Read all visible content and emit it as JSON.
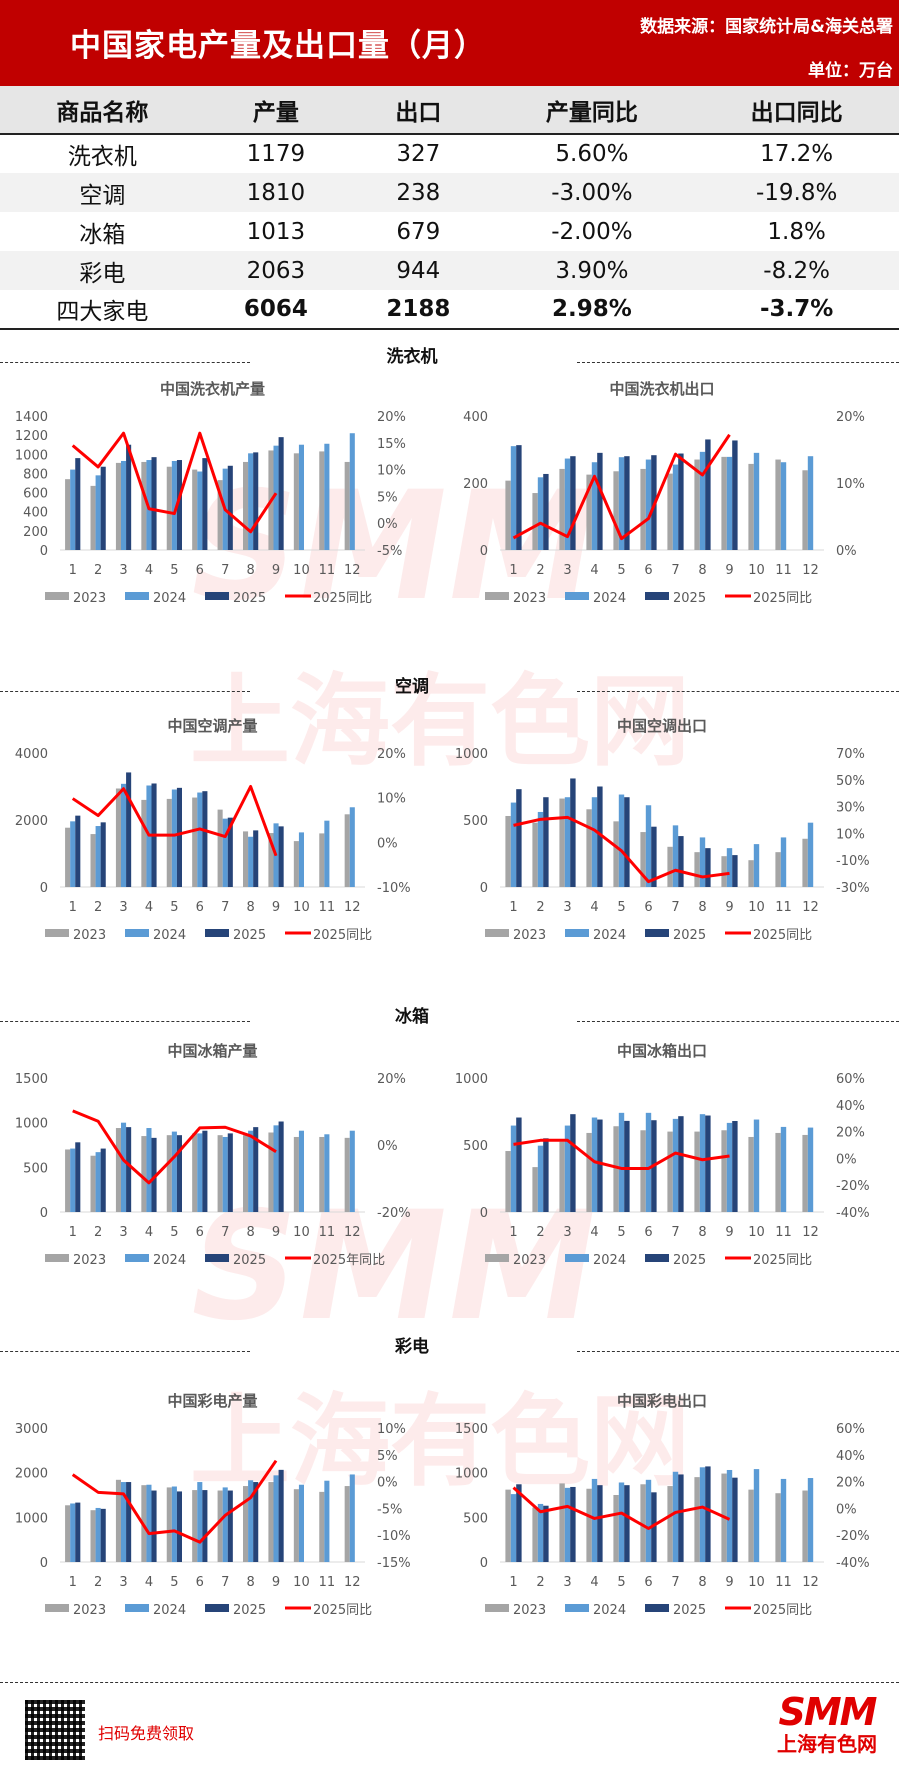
{
  "header": {
    "title": "中国家电产量及出口量（月）",
    "source": "数据来源：国家统计局&海关总署",
    "unit": "单位：万台"
  },
  "summary_table": {
    "columns": [
      "商品名称",
      "产量",
      "出口",
      "产量同比",
      "出口同比"
    ],
    "rows": [
      [
        "洗衣机",
        "1179",
        "327",
        "5.60%",
        "17.2%"
      ],
      [
        "空调",
        "1810",
        "238",
        "-3.00%",
        "-19.8%"
      ],
      [
        "冰箱",
        "1013",
        "679",
        "-2.00%",
        "1.8%"
      ],
      [
        "彩电",
        "2063",
        "944",
        "3.90%",
        "-8.2%"
      ],
      [
        "四大家电",
        "6064",
        "2188",
        "2.98%",
        "-3.7%"
      ]
    ]
  },
  "sections": [
    "洗衣机",
    "空调",
    "冰箱",
    "彩电"
  ],
  "colors": {
    "y2023": "#a5a5a5",
    "y2024": "#5b9bd5",
    "y2025_wm": "#002060",
    "y2025": "#264478",
    "yoy": "#ff0000",
    "brand": "#c00000"
  },
  "chart_data": [
    {
      "type": "bar+line",
      "title": "中国洗衣机产量",
      "categories": [
        "1",
        "2",
        "3",
        "4",
        "5",
        "6",
        "7",
        "8",
        "9",
        "10",
        "11",
        "12"
      ],
      "series": [
        {
          "name": "2023",
          "values": [
            740,
            670,
            910,
            920,
            870,
            840,
            730,
            920,
            1040,
            1010,
            1030,
            920
          ]
        },
        {
          "name": "2024",
          "values": [
            840,
            780,
            930,
            940,
            930,
            820,
            850,
            1010,
            1090,
            1100,
            1110,
            1220
          ]
        },
        {
          "name": "2025",
          "values": [
            960,
            870,
            1100,
            970,
            940,
            960,
            880,
            1020,
            1179,
            null,
            null,
            null
          ]
        }
      ],
      "line": {
        "name": "2025同比",
        "values": [
          14.5,
          10.5,
          16.8,
          2.7,
          1.8,
          16.8,
          2.5,
          -1.6,
          5.6
        ]
      },
      "ylim": [
        0,
        1400
      ],
      "yticks": [
        0,
        200,
        400,
        600,
        800,
        1000,
        1200,
        1400
      ],
      "y2lim": [
        -5,
        20
      ],
      "y2ticks": [
        "-5%",
        "0%",
        "5%",
        "10%",
        "15%",
        "20%"
      ],
      "legend": [
        "2023",
        "2024",
        "2025",
        "2025同比"
      ]
    },
    {
      "type": "bar+line",
      "title": "中国洗衣机出口",
      "categories": [
        "1",
        "2",
        "3",
        "4",
        "5",
        "6",
        "7",
        "8",
        "9",
        "10",
        "11",
        "12"
      ],
      "series": [
        {
          "name": "2023",
          "values": [
            207,
            170,
            242,
            225,
            235,
            242,
            228,
            270,
            278,
            257,
            270,
            238
          ]
        },
        {
          "name": "2024",
          "values": [
            310,
            217,
            273,
            262,
            277,
            270,
            255,
            293,
            278,
            290,
            262,
            280
          ]
        },
        {
          "name": "2025",
          "values": [
            313,
            227,
            280,
            290,
            280,
            283,
            288,
            330,
            327,
            null,
            null,
            null
          ]
        }
      ],
      "line": {
        "name": "2025同比",
        "values": [
          1.8,
          4.0,
          2.0,
          11.0,
          1.7,
          4.7,
          14.3,
          11.2,
          17.2
        ]
      },
      "ylim": [
        0,
        400
      ],
      "yticks": [
        0,
        200,
        400
      ],
      "y2lim": [
        0,
        20
      ],
      "y2ticks": [
        "0%",
        "10%",
        "20%"
      ],
      "legend": [
        "2023",
        "2024",
        "2025",
        "2025同比"
      ]
    },
    {
      "type": "bar+line",
      "title": "中国空调产量",
      "categories": [
        "1",
        "2",
        "3",
        "4",
        "5",
        "6",
        "7",
        "8",
        "9",
        "10",
        "11",
        "12"
      ],
      "series": [
        {
          "name": "2023",
          "values": [
            1770,
            1580,
            2940,
            2600,
            2630,
            2670,
            2310,
            1660,
            1610,
            1370,
            1600,
            2170
          ]
        },
        {
          "name": "2024",
          "values": [
            1960,
            1820,
            3080,
            3030,
            2910,
            2820,
            2040,
            1500,
            1900,
            1630,
            1980,
            2380
          ]
        },
        {
          "name": "2025",
          "values": [
            2130,
            1930,
            3420,
            3090,
            2960,
            2860,
            2070,
            1690,
            1810,
            null,
            null,
            null
          ]
        }
      ],
      "line": {
        "name": "2025同比",
        "values": [
          9.8,
          6.0,
          12.0,
          1.6,
          1.6,
          3.0,
          1.3,
          12.5,
          -3.0
        ]
      },
      "ylim": [
        0,
        4000
      ],
      "yticks": [
        0,
        2000,
        4000
      ],
      "y2lim": [
        -10,
        20
      ],
      "y2ticks": [
        "-10%",
        "0%",
        "10%",
        "20%"
      ],
      "legend": [
        "2023",
        "2024",
        "2025",
        "2025同比"
      ]
    },
    {
      "type": "bar+line",
      "title": "中国空调出口",
      "categories": [
        "1",
        "2",
        "3",
        "4",
        "5",
        "6",
        "7",
        "8",
        "9",
        "10",
        "11",
        "12"
      ],
      "series": [
        {
          "name": "2023",
          "values": [
            530,
            480,
            660,
            580,
            490,
            410,
            300,
            260,
            230,
            200,
            260,
            360
          ]
        },
        {
          "name": "2024",
          "values": [
            630,
            560,
            670,
            670,
            690,
            610,
            460,
            370,
            290,
            320,
            370,
            480
          ]
        },
        {
          "name": "2025",
          "values": [
            730,
            670,
            810,
            750,
            670,
            450,
            380,
            290,
            238,
            null,
            null,
            null
          ]
        }
      ],
      "line": {
        "name": "2025同比",
        "values": [
          16,
          20.5,
          22,
          12.5,
          -3,
          -26,
          -17.5,
          -22.5,
          -19.8
        ]
      },
      "ylim": [
        0,
        1000
      ],
      "yticks": [
        0,
        500,
        1000
      ],
      "y2lim": [
        -30,
        70
      ],
      "y2ticks": [
        "-30%",
        "-10%",
        "10%",
        "30%",
        "50%",
        "70%"
      ],
      "legend": [
        "2023",
        "2024",
        "2025",
        "2025同比"
      ]
    },
    {
      "type": "bar+line",
      "title": "中国冰箱产量",
      "categories": [
        "1",
        "2",
        "3",
        "4",
        "5",
        "6",
        "7",
        "8",
        "9",
        "10",
        "11",
        "12"
      ],
      "series": [
        {
          "name": "2023",
          "values": [
            700,
            630,
            940,
            850,
            860,
            880,
            860,
            860,
            890,
            840,
            840,
            830
          ]
        },
        {
          "name": "2024",
          "values": [
            710,
            670,
            1000,
            940,
            900,
            880,
            840,
            910,
            970,
            910,
            870,
            910
          ]
        },
        {
          "name": "2025",
          "values": [
            780,
            710,
            950,
            830,
            860,
            910,
            880,
            950,
            1013,
            null,
            null,
            null
          ]
        }
      ],
      "line": {
        "name": "2025年同比",
        "values": [
          10.2,
          7.1,
          -4.5,
          -11.3,
          -3.5,
          5.1,
          5.3,
          2.7,
          -2.0
        ]
      },
      "ylim": [
        0,
        1500
      ],
      "yticks": [
        0,
        500,
        1000,
        1500
      ],
      "y2lim": [
        -20,
        20
      ],
      "y2ticks": [
        "-20%",
        "0%",
        "20%"
      ],
      "legend": [
        "2023",
        "2024",
        "2025",
        "2025年同比"
      ]
    },
    {
      "type": "bar+line",
      "title": "中国冰箱出口",
      "categories": [
        "1",
        "2",
        "3",
        "4",
        "5",
        "6",
        "7",
        "8",
        "9",
        "10",
        "11",
        "12"
      ],
      "series": [
        {
          "name": "2023",
          "values": [
            455,
            335,
            525,
            590,
            640,
            610,
            600,
            600,
            610,
            560,
            590,
            575
          ]
        },
        {
          "name": "2024",
          "values": [
            645,
            495,
            645,
            705,
            740,
            740,
            695,
            730,
            665,
            690,
            635,
            630
          ]
        },
        {
          "name": "2025",
          "values": [
            705,
            550,
            730,
            690,
            680,
            685,
            715,
            720,
            679,
            null,
            null,
            null
          ]
        }
      ],
      "line": {
        "name": "2025同比",
        "values": [
          10.5,
          13.5,
          13.5,
          -2.5,
          -7.5,
          -7.5,
          4.0,
          -1.0,
          1.8
        ]
      },
      "ylim": [
        0,
        1000
      ],
      "yticks": [
        0,
        500,
        1000
      ],
      "y2lim": [
        -40,
        60
      ],
      "y2ticks": [
        "-40%",
        "-20%",
        "0%",
        "20%",
        "40%",
        "60%"
      ],
      "legend": [
        "2023",
        "2024",
        "2025",
        "2025同比"
      ]
    },
    {
      "type": "bar+line",
      "title": "中国彩电产量",
      "categories": [
        "1",
        "2",
        "3",
        "4",
        "5",
        "6",
        "7",
        "8",
        "9",
        "10",
        "11",
        "12"
      ],
      "series": [
        {
          "name": "2023",
          "values": [
            1270,
            1160,
            1840,
            1720,
            1670,
            1610,
            1600,
            1700,
            1790,
            1630,
            1570,
            1700
          ]
        },
        {
          "name": "2024",
          "values": [
            1310,
            1210,
            1790,
            1730,
            1690,
            1790,
            1670,
            1830,
            1940,
            1730,
            1820,
            1960
          ]
        },
        {
          "name": "2025",
          "values": [
            1330,
            1190,
            1790,
            1600,
            1580,
            1610,
            1600,
            1790,
            2063,
            null,
            null,
            null
          ]
        }
      ],
      "line": {
        "name": "2025同比",
        "values": [
          1.3,
          -2.0,
          -2.3,
          -9.7,
          -9.2,
          -11.3,
          -6.3,
          -3.0,
          3.9
        ]
      },
      "ylim": [
        0,
        3000
      ],
      "yticks": [
        0,
        1000,
        2000,
        3000
      ],
      "y2lim": [
        -15,
        10
      ],
      "y2ticks": [
        "-15%",
        "-10%",
        "-5%",
        "0%",
        "5%",
        "10%"
      ],
      "legend": [
        "2023",
        "2024",
        "2025",
        "2025同比"
      ]
    },
    {
      "type": "bar+line",
      "title": "中国彩电出口",
      "categories": [
        "1",
        "2",
        "3",
        "4",
        "5",
        "6",
        "7",
        "8",
        "9",
        "10",
        "11",
        "12"
      ],
      "series": [
        {
          "name": "2023",
          "values": [
            810,
            610,
            880,
            820,
            750,
            870,
            850,
            950,
            990,
            810,
            770,
            800
          ]
        },
        {
          "name": "2024",
          "values": [
            760,
            650,
            830,
            930,
            890,
            920,
            1010,
            1060,
            1030,
            1040,
            930,
            940
          ]
        },
        {
          "name": "2025",
          "values": [
            870,
            630,
            840,
            860,
            860,
            780,
            980,
            1070,
            944,
            null,
            null,
            null
          ]
        }
      ],
      "line": {
        "name": "2025同比",
        "values": [
          15.5,
          -2.5,
          1.5,
          -7.5,
          -3.5,
          -15,
          -3.0,
          1.0,
          -8.2
        ]
      },
      "ylim": [
        0,
        1500
      ],
      "yticks": [
        0,
        500,
        1000,
        1500
      ],
      "y2lim": [
        -40,
        60
      ],
      "y2ticks": [
        "-40%",
        "-20%",
        "0%",
        "20%",
        "40%",
        "60%"
      ],
      "legend": [
        "2023",
        "2024",
        "2025",
        "2025同比"
      ]
    }
  ],
  "footer": {
    "qr_caption": "扫码免费领取",
    "logo_main": "SMM",
    "logo_sub": "上海有色网"
  },
  "watermark": {
    "main": "SMM",
    "sub": "上海有色网"
  }
}
